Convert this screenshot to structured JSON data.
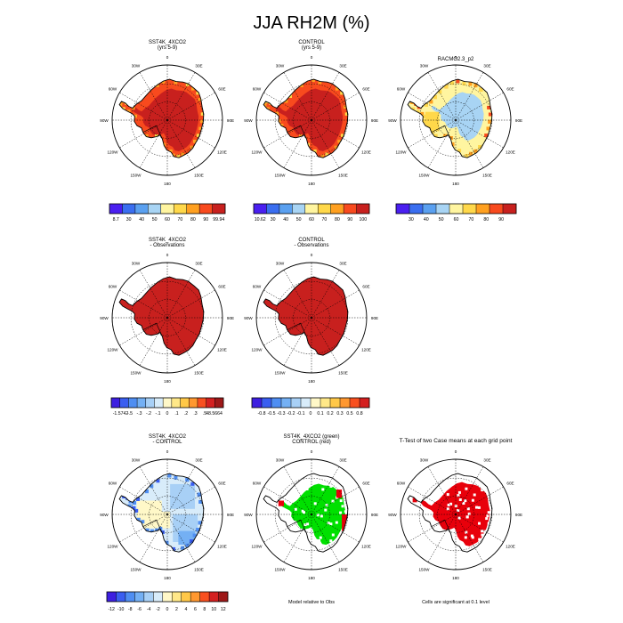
{
  "title": "JJA RH2M (%)",
  "lon_labels": [
    "0",
    "30E",
    "60E",
    "90E",
    "120E",
    "150E",
    "180",
    "150W",
    "120W",
    "90W",
    "60W",
    "30W"
  ],
  "colors": {
    "ocean": "#ffffff",
    "coast": "#000000",
    "land_dark_red": "#c8201e",
    "sig_red": "#e8000b",
    "sig_green": "#00e000"
  },
  "chart_data": [
    {
      "type": "heatmap",
      "projection": "south-polar-stereographic",
      "titles": [
        "SST4K_4XCO2",
        "(yrs 5-9)"
      ],
      "fill": "model-saturated",
      "colorbar": {
        "colors": [
          "#4a1ff0",
          "#3a6ef0",
          "#5aa0f0",
          "#a8d4f4",
          "#fff5a0",
          "#ffd84a",
          "#ffa020",
          "#f84a1e",
          "#c8201e"
        ],
        "labels": [
          "8.7",
          "30",
          "40",
          "50",
          "60",
          "70",
          "80",
          "90",
          "99.94"
        ]
      }
    },
    {
      "type": "heatmap",
      "projection": "south-polar-stereographic",
      "titles": [
        "CONTROL",
        "(yrs 5-9)"
      ],
      "fill": "model-saturated",
      "colorbar": {
        "colors": [
          "#4a1ff0",
          "#3a6ef0",
          "#5aa0f0",
          "#a8d4f4",
          "#fff5a0",
          "#ffd84a",
          "#ffa020",
          "#f84a1e",
          "#c8201e"
        ],
        "labels": [
          "10.62",
          "30",
          "40",
          "50",
          "60",
          "70",
          "80",
          "90",
          "100"
        ]
      }
    },
    {
      "type": "heatmap",
      "projection": "south-polar-stereographic",
      "titles": [
        "RACMO2.3_p2"
      ],
      "fill": "observations",
      "colorbar": {
        "colors": [
          "#4a1ff0",
          "#3a6ef0",
          "#5aa0f0",
          "#a8d4f4",
          "#fff5a0",
          "#ffd84a",
          "#ffa020",
          "#f84a1e",
          "#c8201e"
        ],
        "labels": [
          "30",
          "40",
          "50",
          "60",
          "70",
          "80",
          "90"
        ]
      }
    },
    {
      "type": "heatmap",
      "projection": "south-polar-stereographic",
      "titles": [
        "SST4K_4XCO2",
        "- Observations"
      ],
      "fill": "uniform-dark-red",
      "colorbar": {
        "colors": [
          "#3d1fe0",
          "#3a5ef0",
          "#4f8ef2",
          "#74b0f4",
          "#a8d0f6",
          "#d8ecfa",
          "#fff8c8",
          "#ffe888",
          "#ffc848",
          "#ff9830",
          "#f85020",
          "#d42020",
          "#9e1818"
        ],
        "labels": [
          "-1.5742",
          "-.5",
          "-.3",
          "-.2",
          "-.1",
          "0",
          ".1",
          ".2",
          ".3",
          ".5",
          "48.5664"
        ]
      }
    },
    {
      "type": "heatmap",
      "projection": "south-polar-stereographic",
      "titles": [
        "CONTROL",
        "- Observations"
      ],
      "fill": "uniform-dark-red",
      "colorbar": {
        "colors": [
          "#3d1fe0",
          "#3a5ef0",
          "#4f8ef2",
          "#74b0f4",
          "#a8d0f6",
          "#d8ecfa",
          "#fff8c8",
          "#ffe888",
          "#ffc848",
          "#ff9830",
          "#f85020",
          "#d42020"
        ],
        "labels": [
          "-0.8",
          "-0.5",
          "-0.3",
          "-0.2",
          "-0.1",
          "0",
          "0.1",
          "0.2",
          "0.3",
          "0.5",
          "0.8"
        ]
      }
    },
    {
      "type": "heatmap",
      "projection": "south-polar-stereographic",
      "titles": [
        "SST4K_4XCO2",
        "- CONTROL"
      ],
      "fill": "difference",
      "colorbar": {
        "colors": [
          "#3d1fe0",
          "#3a5ef0",
          "#4f8ef2",
          "#74b0f4",
          "#a8d0f6",
          "#d8ecfa",
          "#fff8c8",
          "#ffe888",
          "#ffc848",
          "#ff9830",
          "#f85020",
          "#d42020",
          "#9e1818"
        ],
        "labels": [
          "-12",
          "-10",
          "-8",
          "-6",
          "-4",
          "-2",
          "0",
          "2",
          "4",
          "6",
          "8",
          "10",
          "12"
        ]
      }
    },
    {
      "type": "heatmap",
      "projection": "south-polar-stereographic",
      "titles": [
        "SST4K_4XCO2 (green)",
        "CONTROL (red)"
      ],
      "fill": "model-vs-obs",
      "caption": "Model relative to Obs"
    },
    {
      "type": "heatmap",
      "projection": "south-polar-stereographic",
      "titles": [
        "T-Test of two Case means at each grid point"
      ],
      "fill": "ttest",
      "caption": "Cells are significant at 0.1 level"
    }
  ]
}
